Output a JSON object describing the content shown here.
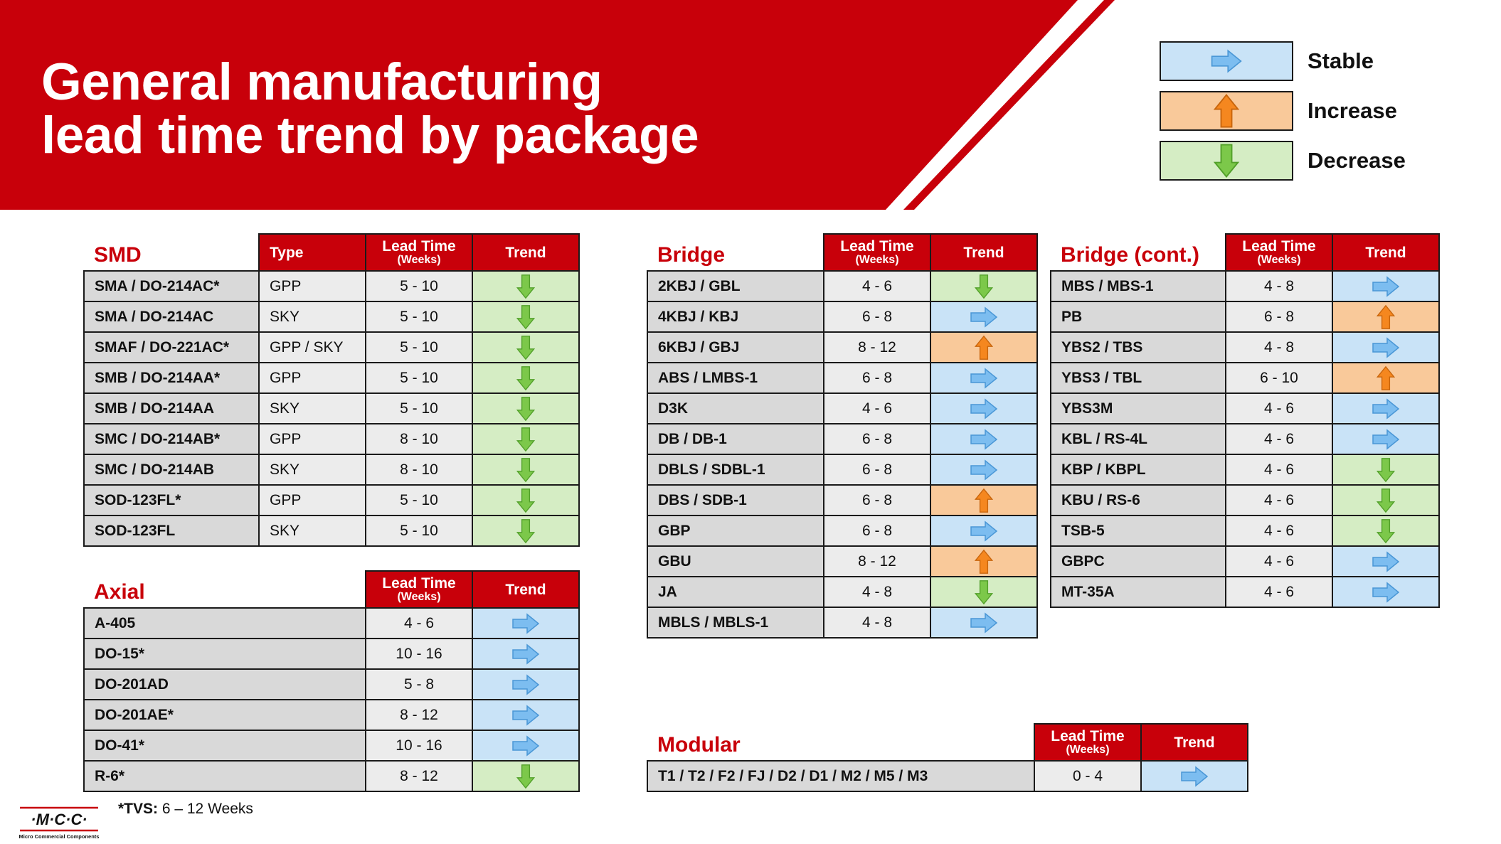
{
  "title": {
    "line1": "General manufacturing",
    "line2": "lead time trend by package"
  },
  "colors": {
    "brand_red": "#c8000a",
    "stable_bg": "#c9e3f7",
    "increase_bg": "#f9c99a",
    "decrease_bg": "#d5edc4"
  },
  "legend": [
    {
      "trend": "stable",
      "label": "Stable",
      "icon": "arrow-right-icon"
    },
    {
      "trend": "increase",
      "label": "Increase",
      "icon": "arrow-up-icon"
    },
    {
      "trend": "decrease",
      "label": "Decrease",
      "icon": "arrow-down-icon"
    }
  ],
  "headers": {
    "type": "Type",
    "lead_time": "Lead Time",
    "weeks": "(Weeks)",
    "trend": "Trend"
  },
  "smd": {
    "title": "SMD",
    "rows": [
      {
        "package": "SMA / DO-214AC*",
        "type": "GPP",
        "lead_time": "5 - 10",
        "trend": "decrease"
      },
      {
        "package": "SMA / DO-214AC",
        "type": "SKY",
        "lead_time": "5 - 10",
        "trend": "decrease"
      },
      {
        "package": "SMAF / DO-221AC*",
        "type": "GPP / SKY",
        "lead_time": "5 - 10",
        "trend": "decrease"
      },
      {
        "package": "SMB / DO-214AA*",
        "type": "GPP",
        "lead_time": "5 - 10",
        "trend": "decrease"
      },
      {
        "package": "SMB / DO-214AA",
        "type": "SKY",
        "lead_time": "5 - 10",
        "trend": "decrease"
      },
      {
        "package": "SMC / DO-214AB*",
        "type": "GPP",
        "lead_time": "8 - 10",
        "trend": "decrease"
      },
      {
        "package": "SMC / DO-214AB",
        "type": "SKY",
        "lead_time": "8 - 10",
        "trend": "decrease"
      },
      {
        "package": "SOD-123FL*",
        "type": "GPP",
        "lead_time": "5 - 10",
        "trend": "decrease"
      },
      {
        "package": "SOD-123FL",
        "type": "SKY",
        "lead_time": "5 - 10",
        "trend": "decrease"
      }
    ]
  },
  "axial": {
    "title": "Axial",
    "rows": [
      {
        "package": "A-405",
        "lead_time": "4 - 6",
        "trend": "stable"
      },
      {
        "package": "DO-15*",
        "lead_time": "10 - 16",
        "trend": "stable"
      },
      {
        "package": "DO-201AD",
        "lead_time": "5 - 8",
        "trend": "stable"
      },
      {
        "package": "DO-201AE*",
        "lead_time": "8 - 12",
        "trend": "stable"
      },
      {
        "package": "DO-41*",
        "lead_time": "10 - 16",
        "trend": "stable"
      },
      {
        "package": "R-6*",
        "lead_time": "8 - 12",
        "trend": "decrease"
      }
    ]
  },
  "bridge": {
    "title": "Bridge",
    "rows": [
      {
        "package": "2KBJ / GBL",
        "lead_time": "4 - 6",
        "trend": "decrease"
      },
      {
        "package": "4KBJ / KBJ",
        "lead_time": "6 - 8",
        "trend": "stable"
      },
      {
        "package": "6KBJ / GBJ",
        "lead_time": "8 - 12",
        "trend": "increase"
      },
      {
        "package": "ABS / LMBS-1",
        "lead_time": "6 - 8",
        "trend": "stable"
      },
      {
        "package": "D3K",
        "lead_time": "4 - 6",
        "trend": "stable"
      },
      {
        "package": "DB / DB-1",
        "lead_time": "6 - 8",
        "trend": "stable"
      },
      {
        "package": "DBLS / SDBL-1",
        "lead_time": "6 - 8",
        "trend": "stable"
      },
      {
        "package": "DBS / SDB-1",
        "lead_time": "6 - 8",
        "trend": "increase"
      },
      {
        "package": "GBP",
        "lead_time": "6 - 8",
        "trend": "stable"
      },
      {
        "package": "GBU",
        "lead_time": "8 - 12",
        "trend": "increase"
      },
      {
        "package": "JA",
        "lead_time": "4 - 8",
        "trend": "decrease"
      },
      {
        "package": "MBLS / MBLS-1",
        "lead_time": "4 - 8",
        "trend": "stable"
      }
    ]
  },
  "bridge_cont": {
    "title": "Bridge (cont.)",
    "rows": [
      {
        "package": "MBS / MBS-1",
        "lead_time": "4 - 8",
        "trend": "stable"
      },
      {
        "package": "PB",
        "lead_time": "6 - 8",
        "trend": "increase"
      },
      {
        "package": "YBS2 / TBS",
        "lead_time": "4 - 8",
        "trend": "stable"
      },
      {
        "package": "YBS3 / TBL",
        "lead_time": "6 - 10",
        "trend": "increase"
      },
      {
        "package": "YBS3M",
        "lead_time": "4 - 6",
        "trend": "stable"
      },
      {
        "package": "KBL / RS-4L",
        "lead_time": "4 - 6",
        "trend": "stable"
      },
      {
        "package": "KBP / KBPL",
        "lead_time": "4 - 6",
        "trend": "decrease"
      },
      {
        "package": "KBU / RS-6",
        "lead_time": "4 - 6",
        "trend": "decrease"
      },
      {
        "package": "TSB-5",
        "lead_time": "4 - 6",
        "trend": "decrease"
      },
      {
        "package": "GBPC",
        "lead_time": "4 - 6",
        "trend": "stable"
      },
      {
        "package": "MT-35A",
        "lead_time": "4 - 6",
        "trend": "stable"
      }
    ]
  },
  "modular": {
    "title": "Modular",
    "rows": [
      {
        "package": "T1 / T2 / F2 / FJ / D2 / D1 / M2 / M5 / M3",
        "lead_time": "0 - 4",
        "trend": "stable"
      }
    ]
  },
  "footnote": {
    "label": "*TVS:",
    "text": " 6 – 12 Weeks"
  },
  "logo": {
    "text": "·M·C·C·",
    "caption": "Micro Commercial Components"
  }
}
